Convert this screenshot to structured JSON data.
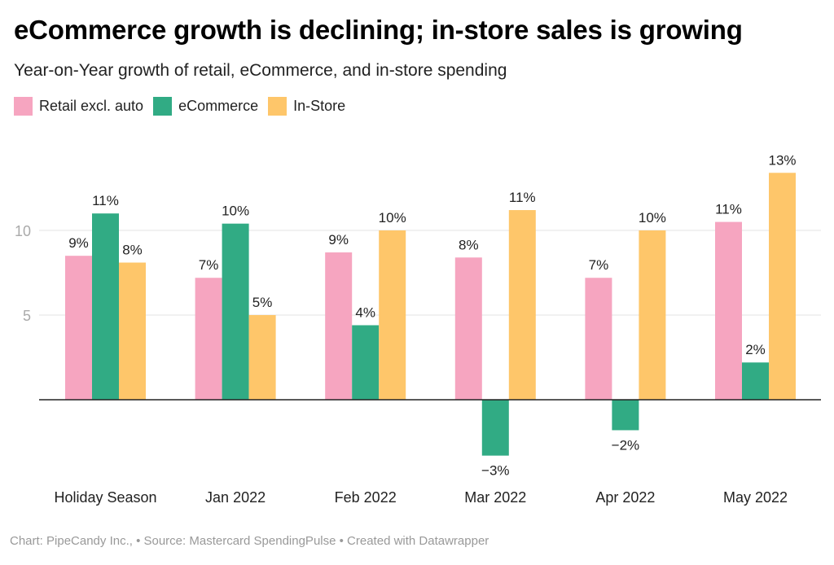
{
  "chart_data": {
    "type": "bar",
    "title": "eCommerce growth is declining; in-store sales is growing",
    "subtitle": "Year-on-Year growth of retail, eCommerce, and in-store spending",
    "xlabel": "",
    "ylabel": "",
    "ylim": [
      -4,
      14
    ],
    "yticks": [
      5,
      10
    ],
    "grid": true,
    "legend_position": "top-left",
    "categories": [
      "Holiday Season",
      "Jan 2022",
      "Feb 2022",
      "Mar 2022",
      "Apr 2022",
      "May 2022"
    ],
    "series": [
      {
        "name": "Retail excl. auto",
        "color": "#f6a5c0",
        "values": [
          8.5,
          7.2,
          8.7,
          8.4,
          7.2,
          10.5
        ],
        "labels": [
          "9%",
          "7%",
          "9%",
          "8%",
          "7%",
          "11%"
        ]
      },
      {
        "name": "eCommerce",
        "color": "#31ab84",
        "values": [
          11.0,
          10.4,
          4.4,
          -3.3,
          -1.8,
          2.2
        ],
        "labels": [
          "11%",
          "10%",
          "4%",
          "−3%",
          "−2%",
          "2%"
        ]
      },
      {
        "name": "In-Store",
        "color": "#fec66a",
        "values": [
          8.1,
          5.0,
          10.0,
          11.2,
          10.0,
          13.4
        ],
        "labels": [
          "8%",
          "5%",
          "10%",
          "11%",
          "10%",
          "13%"
        ]
      }
    ]
  },
  "footer": {
    "text": "Chart: PipeCandy Inc., • Source: Mastercard SpendingPulse • Created with Datawrapper"
  },
  "colors": {
    "gridline": "#e3e3e3",
    "baseline": "#222222",
    "tick_label": "#aaaaaa",
    "data_label": "#222222"
  }
}
